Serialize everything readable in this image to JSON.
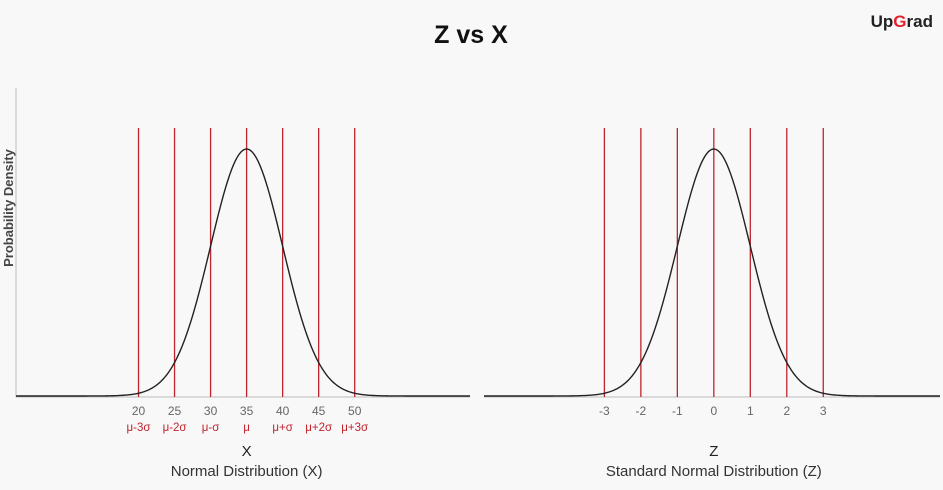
{
  "title": "Z vs X",
  "logo": {
    "part1": "Up",
    "part2": "G",
    "part3": "rad",
    "accent": "#e3212a"
  },
  "ylabel": "Probability Density",
  "colors": {
    "line": "#c0242e",
    "curve": "#222222",
    "axis": "#bdbdbd"
  },
  "chart_data": [
    {
      "type": "line",
      "name": "normal-x",
      "mean": 35,
      "sd": 5,
      "xlim": [
        3,
        66
      ],
      "ticks": [
        20,
        25,
        30,
        35,
        40,
        45,
        50
      ],
      "tick_symbols": [
        "μ-3σ",
        "μ-2σ",
        "μ-σ",
        "μ",
        "μ+σ",
        "μ+2σ",
        "μ+3σ"
      ],
      "axis_letter": "X",
      "caption": "Normal Distribution (X)"
    },
    {
      "type": "line",
      "name": "standard-z",
      "mean": 0,
      "sd": 1,
      "xlim": [
        -6.3,
        6.2
      ],
      "ticks": [
        -3,
        -2,
        -1,
        0,
        1,
        2,
        3
      ],
      "tick_symbols": [],
      "axis_letter": "Z",
      "caption": "Standard Normal Distribution (Z)"
    }
  ]
}
